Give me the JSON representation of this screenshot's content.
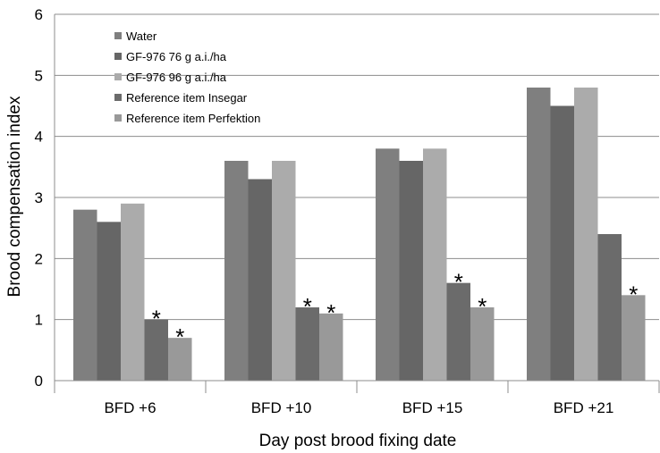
{
  "chart_data": {
    "type": "bar",
    "title": "",
    "xlabel": "Day post brood fixing date",
    "ylabel": "Brood compensation index",
    "ylim": [
      0,
      6
    ],
    "yticks": [
      "0",
      "1",
      "2",
      "3",
      "4",
      "5",
      "6"
    ],
    "grid": true,
    "legend_position": "top-left",
    "categories": [
      "BFD +6",
      "BFD +10",
      "BFD +15",
      "BFD +21"
    ],
    "series": [
      {
        "name": "Water",
        "color": "#7f7f7f",
        "values": [
          2.8,
          3.6,
          3.8,
          4.8
        ]
      },
      {
        "name": "GF-976 76 g a.i./ha",
        "color": "#666666",
        "values": [
          2.6,
          3.3,
          3.6,
          4.5
        ]
      },
      {
        "name": "GF-976 96 g a.i./ha",
        "color": "#ababab",
        "values": [
          2.9,
          3.6,
          3.8,
          4.8
        ]
      },
      {
        "name": "Reference item Insegar",
        "color": "#6b6b6b",
        "values": [
          1.0,
          1.2,
          1.6,
          2.4
        ]
      },
      {
        "name": "Reference item Perfektion",
        "color": "#999999",
        "values": [
          0.7,
          1.1,
          1.2,
          1.4
        ]
      }
    ],
    "significance_marker": "*",
    "significance": [
      {
        "series": 3,
        "category": 0
      },
      {
        "series": 4,
        "category": 0
      },
      {
        "series": 3,
        "category": 1
      },
      {
        "series": 4,
        "category": 1
      },
      {
        "series": 3,
        "category": 2
      },
      {
        "series": 4,
        "category": 2
      },
      {
        "series": 4,
        "category": 3
      }
    ]
  }
}
